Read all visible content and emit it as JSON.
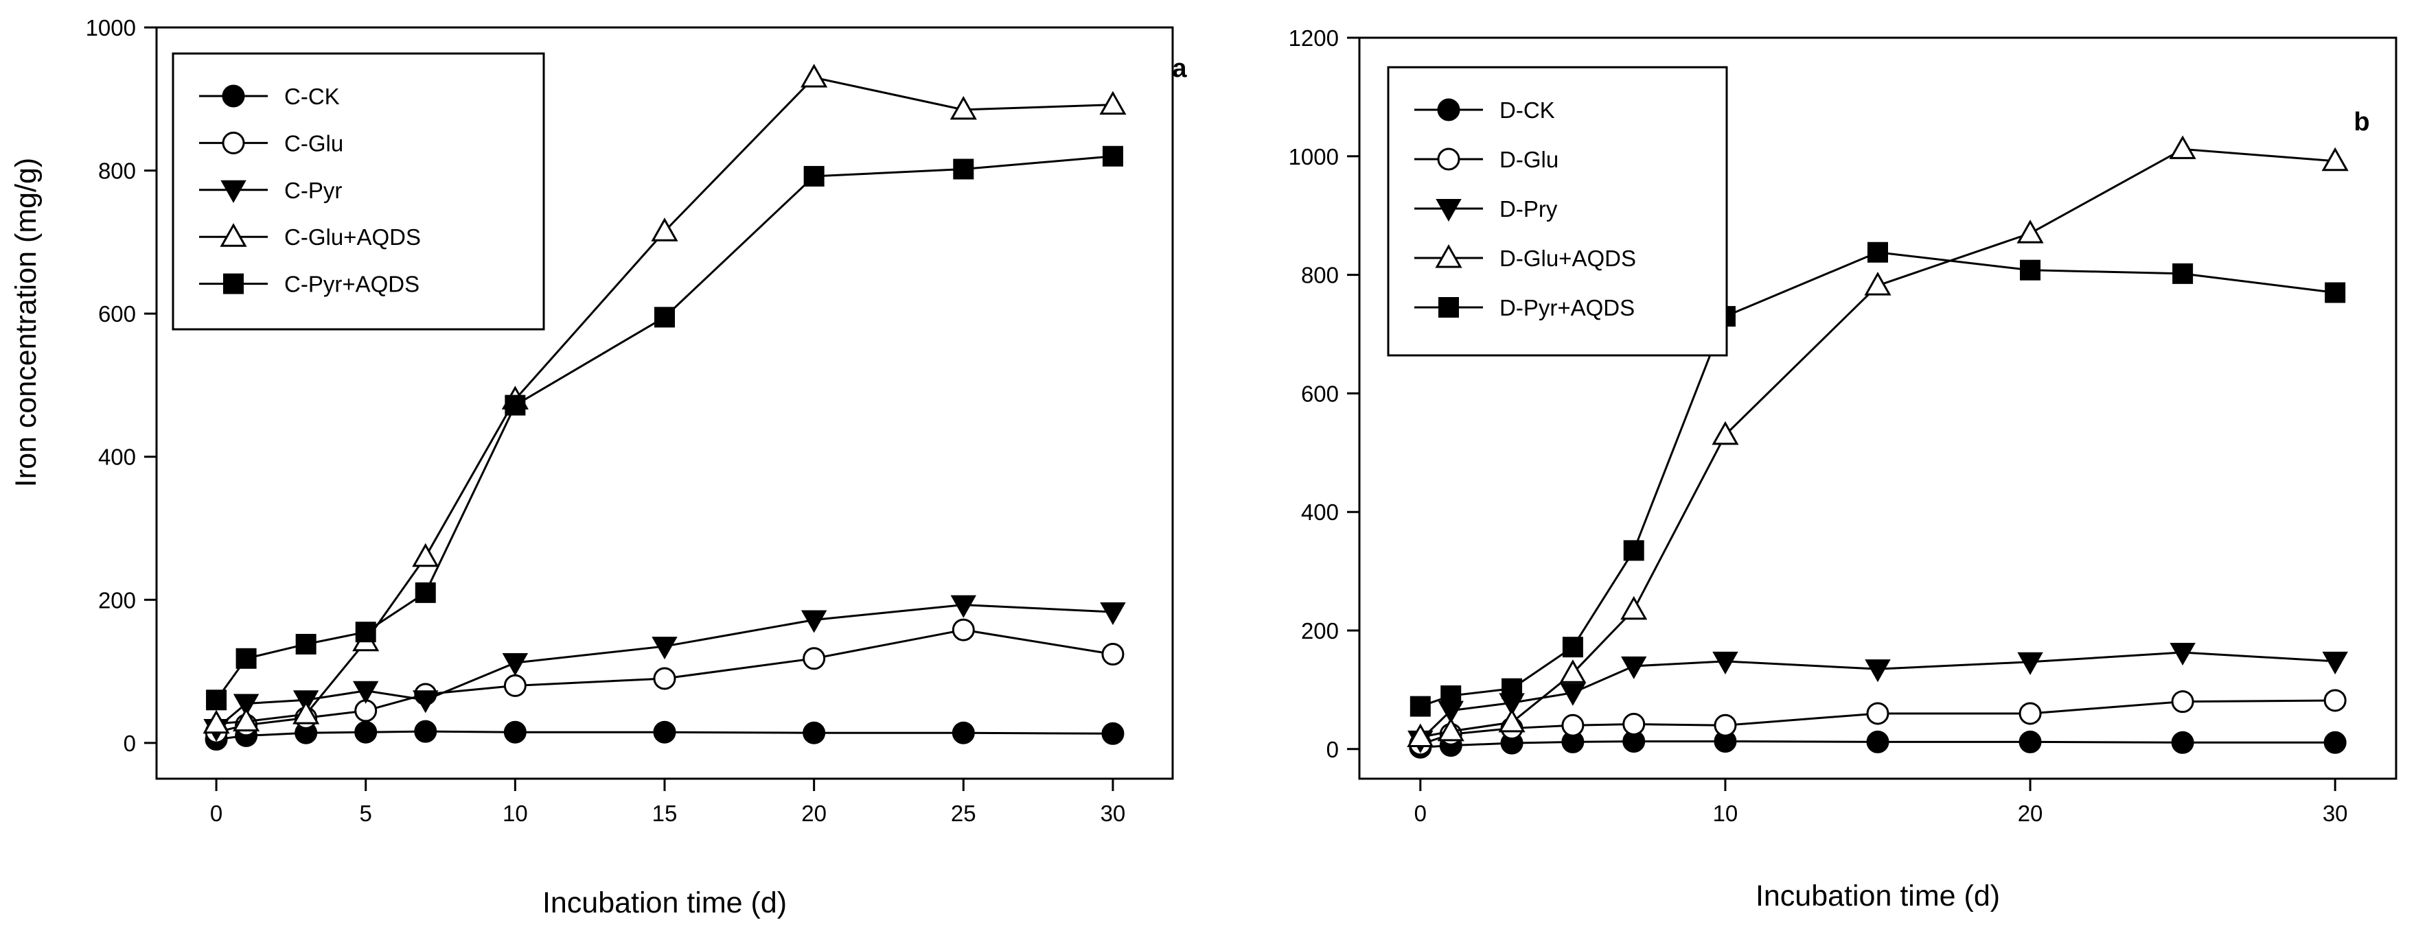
{
  "chart_data": [
    {
      "type": "line",
      "panel_label": "a",
      "xlabel": "Incubation time (d)",
      "ylabel": "Iron concentration (mg/g)",
      "xlim": [
        -2,
        32
      ],
      "ylim": [
        -50,
        1000
      ],
      "xticks": [
        0,
        5,
        10,
        15,
        20,
        25,
        30
      ],
      "yticks": [
        0,
        200,
        400,
        600,
        800,
        1000
      ],
      "legend_position": "top-left",
      "grid": false,
      "x": [
        0,
        1,
        3,
        5,
        7,
        10,
        15,
        20,
        25,
        30
      ],
      "series": [
        {
          "name": "C-CK",
          "marker": "circle-filled",
          "values": [
            5,
            10,
            14,
            15,
            16,
            15,
            15,
            14,
            14,
            13
          ]
        },
        {
          "name": "C-Glu",
          "marker": "circle-open",
          "values": [
            15,
            25,
            35,
            45,
            68,
            80,
            90,
            118,
            158,
            124
          ]
        },
        {
          "name": "C-Pyr",
          "marker": "triangle-down-filled",
          "values": [
            20,
            55,
            60,
            73,
            60,
            112,
            135,
            172,
            193,
            183
          ]
        },
        {
          "name": "C-Glu+AQDS",
          "marker": "triangle-up-open",
          "values": [
            27,
            30,
            40,
            142,
            260,
            480,
            715,
            930,
            885,
            892
          ]
        },
        {
          "name": "C-Pyr+AQDS",
          "marker": "square-filled",
          "values": [
            60,
            118,
            138,
            155,
            210,
            472,
            595,
            792,
            802,
            820
          ]
        }
      ]
    },
    {
      "type": "line",
      "panel_label": "b",
      "xlabel": "Incubation time (d)",
      "ylabel": "",
      "xlim": [
        -2,
        32
      ],
      "ylim": [
        -50,
        1200
      ],
      "xticks": [
        0,
        10,
        20,
        30
      ],
      "yticks": [
        0,
        200,
        400,
        600,
        800,
        1000,
        1200
      ],
      "legend_position": "top-left",
      "grid": false,
      "x": [
        0,
        1,
        3,
        5,
        7,
        10,
        15,
        20,
        25,
        30
      ],
      "series": [
        {
          "name": "D-CK",
          "marker": "circle-filled",
          "values": [
            3,
            6,
            10,
            12,
            13,
            13,
            12,
            12,
            11,
            11
          ]
        },
        {
          "name": "D-Glu",
          "marker": "circle-open",
          "values": [
            8,
            25,
            35,
            40,
            42,
            40,
            60,
            60,
            80,
            82
          ]
        },
        {
          "name": "D-Pry",
          "marker": "triangle-down-filled",
          "values": [
            15,
            65,
            78,
            95,
            140,
            148,
            135,
            147,
            163,
            148
          ]
        },
        {
          "name": "D-Glu+AQDS",
          "marker": "triangle-up-open",
          "values": [
            20,
            30,
            45,
            128,
            235,
            530,
            782,
            870,
            1012,
            992
          ]
        },
        {
          "name": "D-Pyr+AQDS",
          "marker": "square-filled",
          "values": [
            72,
            90,
            102,
            172,
            335,
            730,
            838,
            808,
            802,
            770
          ]
        }
      ]
    }
  ]
}
